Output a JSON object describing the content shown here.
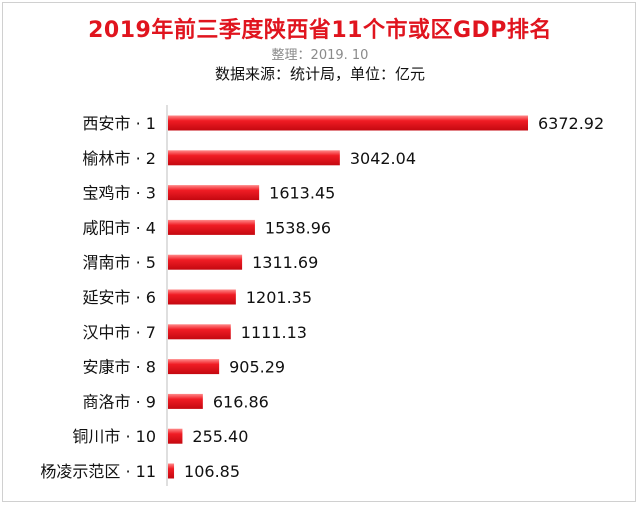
{
  "title": "2019年前三季度陕西省11个市或区GDP排名",
  "subtitle": "整理：2019. 10",
  "source": "数据来源：统计局，单位：亿元",
  "chart_data": {
    "type": "bar",
    "orientation": "horizontal",
    "categories": [
      "西安市 · 1",
      "榆林市 · 2",
      "宝鸡市 · 3",
      "咸阳市 · 4",
      "渭南市 · 5",
      "延安市 · 6",
      "汉中市 · 7",
      "安康市 · 8",
      "商洛市 · 9",
      "铜川市 · 10",
      "杨凌示范区 · 11"
    ],
    "values": [
      6372.92,
      3042.04,
      1613.45,
      1538.96,
      1311.69,
      1201.35,
      1111.13,
      905.29,
      616.86,
      255.4,
      106.85
    ],
    "value_labels": [
      "6372.92",
      "3042.04",
      "1613.45",
      "1538.96",
      "1311.69",
      "1201.35",
      "1111.13",
      "905.29",
      "616.86",
      "255.40",
      "106.85"
    ],
    "xlim": [
      0,
      6372.92
    ],
    "grid": false,
    "legend": "none",
    "bar_color": "#e8141f"
  }
}
